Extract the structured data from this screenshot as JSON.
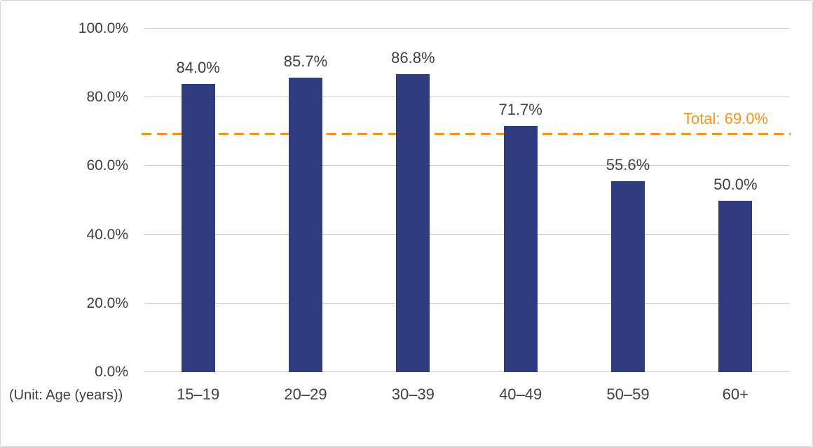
{
  "chart_data": {
    "type": "bar",
    "title": "",
    "categories": [
      "15–19",
      "20–29",
      "30–39",
      "40–49",
      "50–59",
      "60+"
    ],
    "values": [
      84.0,
      85.7,
      86.8,
      71.7,
      55.6,
      50.0
    ],
    "value_labels": [
      "84.0%",
      "85.7%",
      "86.8%",
      "71.7%",
      "55.6%",
      "50.0%"
    ],
    "y_ticks": [
      "100.0%",
      "80.0%",
      "60.0%",
      "40.0%",
      "20.0%",
      "0.0%"
    ],
    "ylim": [
      0,
      100
    ],
    "grid": true,
    "legend": "none",
    "unit_note": "(Unit: Age (years))",
    "total_line": {
      "label": "Total: 69.0%",
      "value": 69.0
    },
    "colors": {
      "bar": "#2f3c7e",
      "total_line": "#f7941d",
      "grid": "#c9c9c9",
      "text": "#404040"
    }
  }
}
